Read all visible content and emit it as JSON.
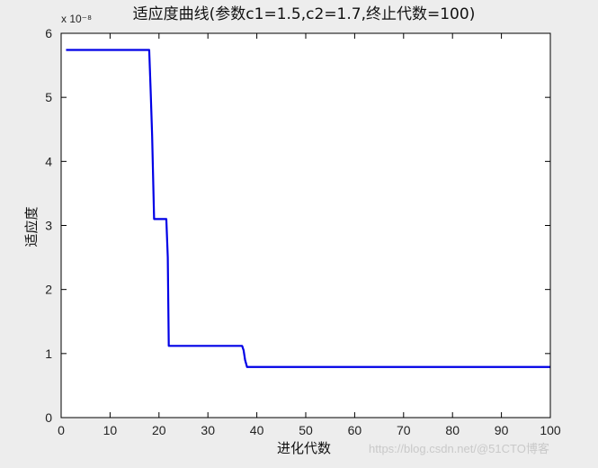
{
  "chart_data": {
    "type": "line",
    "title": "适应度曲线(参数c1=1.5,c2=1.7,终止代数=100)",
    "xlabel": "进化代数",
    "ylabel": "适应度",
    "y_exponent_label": "x 10⁻⁸",
    "xlim": [
      0,
      100
    ],
    "ylim": [
      0,
      6
    ],
    "xticks": [
      0,
      10,
      20,
      30,
      40,
      50,
      60,
      70,
      80,
      90,
      100
    ],
    "yticks": [
      0,
      1,
      2,
      3,
      4,
      5,
      6
    ],
    "grid": false,
    "legend": "none",
    "line_color": "#0000e6",
    "series": [
      {
        "x": [
          1,
          18,
          18.3,
          18.6,
          19,
          21.5,
          21.8,
          22,
          37,
          37.3,
          37.6,
          38,
          100
        ],
        "y": [
          5.74,
          5.74,
          5.1,
          4.4,
          3.1,
          3.1,
          2.5,
          1.12,
          1.12,
          1.05,
          0.9,
          0.79,
          0.79
        ]
      }
    ]
  },
  "watermark": "https://blog.csdn.net/@51CTO博客"
}
